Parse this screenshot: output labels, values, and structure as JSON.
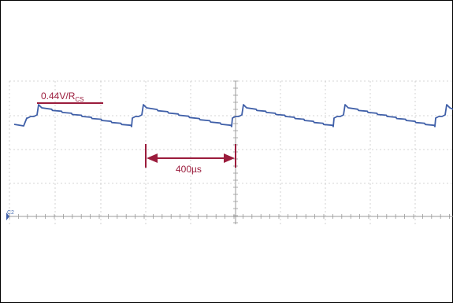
{
  "chart_data": {
    "type": "line",
    "title": "",
    "xlabel": "",
    "ylabel": "",
    "grid": true,
    "time_division_us": 400,
    "period_us": 510,
    "xlim_us": [
      -44,
      2256
    ],
    "ylim_divisions": [
      -1,
      4
    ],
    "series": [
      {
        "name": "",
        "color": "#3f5fa8",
        "description_points": [
          {
            "t_us": -40,
            "v_div": 3.1
          },
          {
            "t_us": 0,
            "v_div": 3.1
          },
          {
            "t_us": 10,
            "v_div": 3.35
          },
          {
            "t_us": 50,
            "v_div": 3.6
          },
          {
            "t_us": 500,
            "v_div": 2.75
          },
          {
            "t_us": 510,
            "v_div": 3.1
          }
        ],
        "edge_times_us": [
          -40,
          470,
          980,
          1490,
          2000
        ]
      }
    ],
    "annotations": {
      "current_limit_label": "0.44V/R",
      "current_limit_sub": "CS",
      "period_label": "400µs",
      "channel_marker": "C2",
      "color": "#9b1c3c"
    }
  }
}
